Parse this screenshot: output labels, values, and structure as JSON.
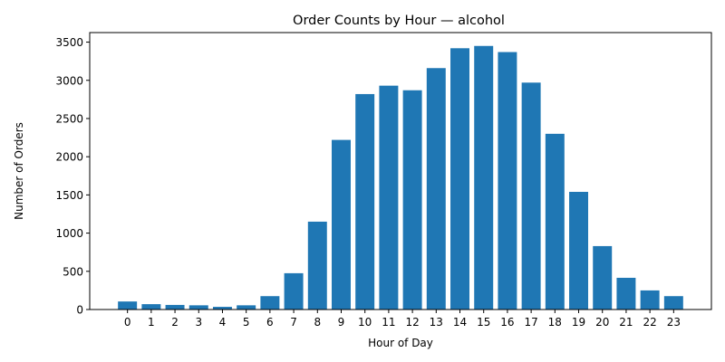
{
  "chart_data": {
    "type": "bar",
    "title": "Order Counts by Hour — alcohol",
    "xlabel": "Hour of Day",
    "ylabel": "Number of Orders",
    "categories": [
      "0",
      "1",
      "2",
      "3",
      "4",
      "5",
      "6",
      "7",
      "8",
      "9",
      "10",
      "11",
      "12",
      "13",
      "14",
      "15",
      "16",
      "17",
      "18",
      "19",
      "20",
      "21",
      "22",
      "23"
    ],
    "values": [
      105,
      70,
      60,
      55,
      35,
      55,
      175,
      475,
      1150,
      2220,
      2820,
      2930,
      2870,
      3160,
      3420,
      3450,
      3370,
      2970,
      2300,
      1540,
      830,
      415,
      250,
      175
    ],
    "yticks": [
      0,
      500,
      1000,
      1500,
      2000,
      2500,
      3000,
      3500
    ],
    "ylim": [
      0,
      3625
    ],
    "bar_color": "#1f77b4",
    "grid": false,
    "legend": "none"
  }
}
